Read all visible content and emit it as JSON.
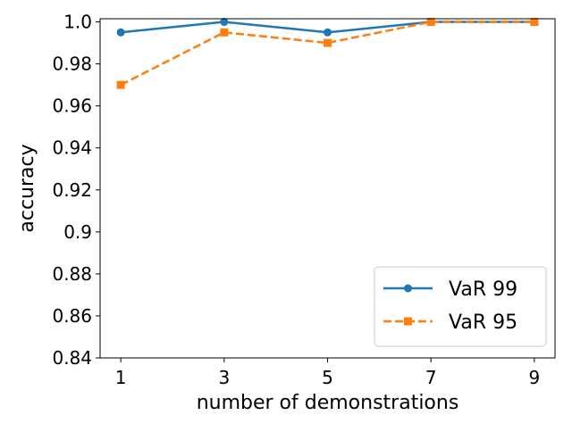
{
  "chart_data": {
    "type": "line",
    "title": "",
    "xlabel": "number of demonstrations",
    "ylabel": "accuracy",
    "x": [
      1,
      3,
      5,
      7,
      9
    ],
    "x_ticks": [
      1,
      3,
      5,
      7,
      9
    ],
    "x_tick_labels": [
      "1",
      "3",
      "5",
      "7",
      "9"
    ],
    "xlim": [
      0.6,
      9.4
    ],
    "ylim": [
      0.84,
      1.0015
    ],
    "y_ticks": [
      0.84,
      0.86,
      0.88,
      0.9,
      0.92,
      0.94,
      0.96,
      0.98,
      1.0
    ],
    "y_tick_labels": [
      "0.84",
      "0.86",
      "0.88",
      "0.9",
      "0.92",
      "0.94",
      "0.96",
      "0.98",
      "1.0"
    ],
    "grid": false,
    "legend_position": "lower-right",
    "series": [
      {
        "name": "VaR 99",
        "values": [
          0.995,
          1.0,
          0.995,
          1.0,
          1.0
        ],
        "color": "#1f77b4",
        "line_style": "solid",
        "marker": "circle"
      },
      {
        "name": "VaR 95",
        "values": [
          0.97,
          0.995,
          0.99,
          1.0,
          1.0
        ],
        "color": "#ff7f0e",
        "line_style": "dashed",
        "marker": "square"
      }
    ]
  }
}
